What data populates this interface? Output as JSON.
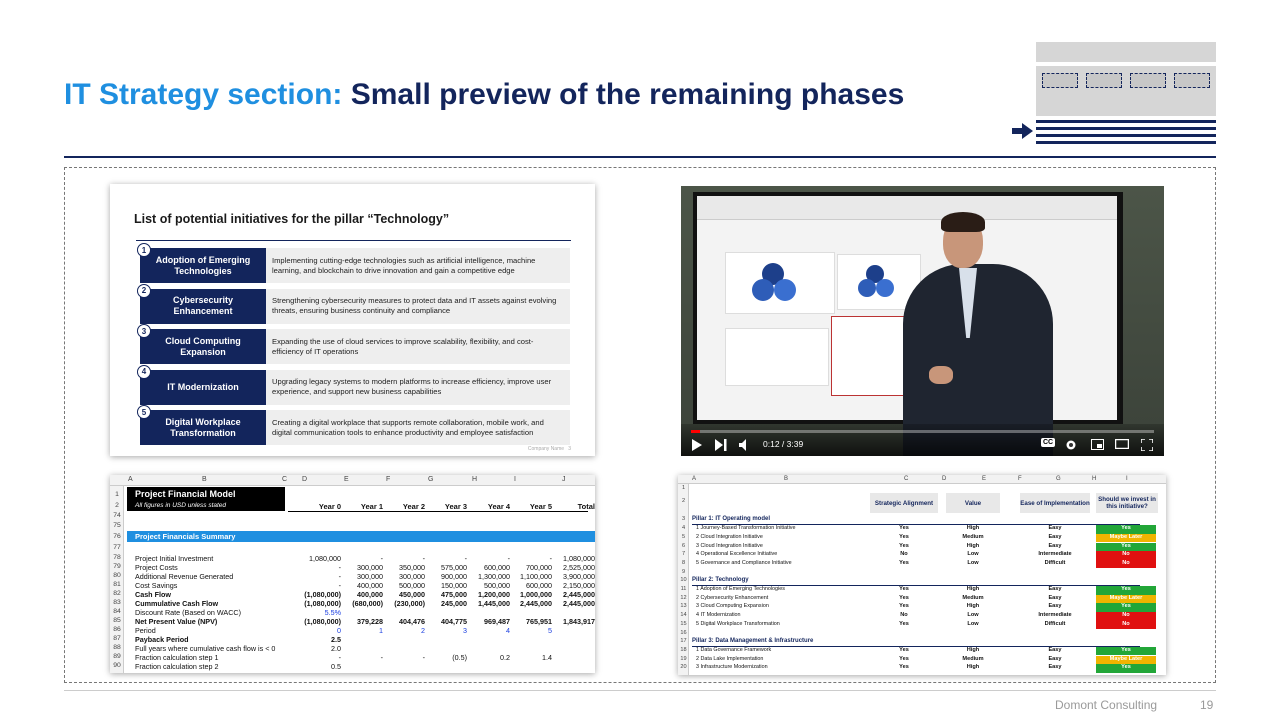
{
  "title": {
    "accent": "IT Strategy section:",
    "rest": "Small preview of the remaining phases"
  },
  "colors": {
    "accent": "#1f8fe0",
    "navy": "#13255c",
    "yes_green": "#22a638",
    "maybe_amber": "#f0b400",
    "no_red": "#e01010"
  },
  "initiatives_slide": {
    "heading": "List of potential initiatives for the pillar “Technology”",
    "footer": "Company Name",
    "footer_page": "3",
    "items": [
      {
        "num": "1",
        "label": "Adoption of Emerging Technologies",
        "desc": "Implementing cutting-edge technologies such as artificial intelligence, machine learning, and blockchain to drive innovation and gain a competitive edge"
      },
      {
        "num": "2",
        "label": "Cybersecurity Enhancement",
        "desc": "Strengthening cybersecurity measures to protect data and IT assets against evolving threats, ensuring business continuity and compliance"
      },
      {
        "num": "3",
        "label": "Cloud Computing Expansion",
        "desc": "Expanding the use of cloud services to improve scalability, flexibility, and cost-efficiency of IT operations"
      },
      {
        "num": "4",
        "label": "IT Modernization",
        "desc": "Upgrading legacy systems to modern platforms to increase efficiency, improve user experience, and support new business capabilities"
      },
      {
        "num": "5",
        "label": "Digital Workplace Transformation",
        "desc": "Creating a digital workplace that supports remote collaboration, mobile work, and digital communication tools to enhance productivity and employee satisfaction"
      }
    ]
  },
  "video": {
    "time": "0:12 / 3:39",
    "progress": 0.02,
    "cc_label": "CC"
  },
  "financial_model": {
    "col_letters": [
      "A",
      "B",
      "C",
      "D",
      "E",
      "F",
      "G",
      "H",
      "I",
      "J"
    ],
    "title": "Project Financial Model",
    "subtitle": "All figures in USD unless stated",
    "headers": [
      "Year 0",
      "Year 1",
      "Year 2",
      "Year 3",
      "Year 4",
      "Year 5",
      "Total"
    ],
    "section_label": "Project Financials Summary",
    "row_numbers": [
      "1",
      "2",
      "74",
      "75",
      "76",
      "77",
      "78",
      "79",
      "80",
      "81",
      "82",
      "83",
      "84",
      "85",
      "86",
      "87",
      "88",
      "89",
      "90"
    ],
    "rows": [
      {
        "label": "Project Initial Investment",
        "bold": false,
        "values": [
          "1,080,000",
          "-",
          "-",
          "-",
          "-",
          "-",
          "1,080,000"
        ]
      },
      {
        "label": "Project Costs",
        "bold": false,
        "values": [
          "-",
          "300,000",
          "350,000",
          "575,000",
          "600,000",
          "700,000",
          "2,525,000"
        ]
      },
      {
        "label": "Additional Revenue Generated",
        "bold": false,
        "values": [
          "-",
          "300,000",
          "300,000",
          "900,000",
          "1,300,000",
          "1,100,000",
          "3,900,000"
        ]
      },
      {
        "label": "Cost Savings",
        "bold": false,
        "values": [
          "-",
          "400,000",
          "500,000",
          "150,000",
          "500,000",
          "600,000",
          "2,150,000"
        ]
      },
      {
        "label": "Cash Flow",
        "bold": true,
        "values": [
          "(1,080,000)",
          "400,000",
          "450,000",
          "475,000",
          "1,200,000",
          "1,000,000",
          "2,445,000"
        ]
      },
      {
        "label": "Cummulative Cash Flow",
        "bold": true,
        "values": [
          "(1,080,000)",
          "(680,000)",
          "(230,000)",
          "245,000",
          "1,445,000",
          "2,445,000",
          "2,445,000"
        ]
      },
      {
        "label": "Discount Rate (Based on WACC)",
        "bold": false,
        "blue": true,
        "values": [
          "5.5%",
          "",
          "",
          "",
          "",
          "",
          ""
        ]
      },
      {
        "label": "Net Present Value (NPV)",
        "bold": true,
        "values": [
          "(1,080,000)",
          "379,228",
          "404,476",
          "404,775",
          "969,487",
          "765,951",
          "1,843,917"
        ]
      },
      {
        "label": "Period",
        "bold": false,
        "blue": true,
        "values": [
          "0",
          "1",
          "2",
          "3",
          "4",
          "5",
          ""
        ]
      },
      {
        "label": "Payback Period",
        "bold": true,
        "values": [
          "2.5",
          "",
          "",
          "",
          "",
          "",
          ""
        ]
      },
      {
        "label": "Full years where cumulative cash flow is < 0",
        "bold": false,
        "values": [
          "2.0",
          "",
          "",
          "",
          "",
          "",
          ""
        ]
      },
      {
        "label": "Fraction calculation step 1",
        "bold": false,
        "values": [
          "-",
          "-",
          "-",
          "(0.5)",
          "0.2",
          "1.4",
          ""
        ]
      },
      {
        "label": "Fraction calculation step 2",
        "bold": false,
        "values": [
          "0.5",
          "",
          "",
          "",
          "",
          "",
          ""
        ]
      }
    ]
  },
  "alignment_sheet": {
    "col_letters": [
      "A",
      "B",
      "C",
      "D",
      "E",
      "F",
      "G",
      "H",
      "I"
    ],
    "headers": [
      "Strategic Alignment",
      "Value",
      "Ease of Implementation",
      "Should we invest in this initiative?"
    ],
    "pillars": [
      {
        "row": "3",
        "name": "Pillar 1: IT Operating model",
        "items": [
          {
            "row": "4",
            "name": "1 Journey-Based Transformation Initiative",
            "align": "Yes",
            "value": "High",
            "ease": "Easy",
            "invest": "Yes"
          },
          {
            "row": "5",
            "name": "2 Cloud Integration Initiative",
            "align": "Yes",
            "value": "Medium",
            "ease": "Easy",
            "invest": "Maybe Later"
          },
          {
            "row": "6",
            "name": "3 Cloud Integration Initiative",
            "align": "Yes",
            "value": "High",
            "ease": "Easy",
            "invest": "Yes"
          },
          {
            "row": "7",
            "name": "4 Operational Excellence Initiative",
            "align": "No",
            "value": "Low",
            "ease": "Intermediate",
            "invest": "No"
          },
          {
            "row": "8",
            "name": "5 Governance and Compliance Initiative",
            "align": "Yes",
            "value": "Low",
            "ease": "Difficult",
            "invest": "No"
          }
        ]
      },
      {
        "row": "10",
        "name": "Pillar 2: Technology",
        "items": [
          {
            "row": "11",
            "name": "1 Adoption of Emerging Technologies",
            "align": "Yes",
            "value": "High",
            "ease": "Easy",
            "invest": "Yes"
          },
          {
            "row": "12",
            "name": "2 Cybersecurity Enhancement",
            "align": "Yes",
            "value": "Medium",
            "ease": "Easy",
            "invest": "Maybe Later"
          },
          {
            "row": "13",
            "name": "3 Cloud Computing Expansion",
            "align": "Yes",
            "value": "High",
            "ease": "Easy",
            "invest": "Yes"
          },
          {
            "row": "14",
            "name": "4 IT Modernization",
            "align": "No",
            "value": "Low",
            "ease": "Intermediate",
            "invest": "No"
          },
          {
            "row": "15",
            "name": "5 Digital Workplace Transformation",
            "align": "Yes",
            "value": "Low",
            "ease": "Difficult",
            "invest": "No"
          }
        ]
      },
      {
        "row": "17",
        "name": "Pillar 3: Data Management & Infrastructure",
        "items": [
          {
            "row": "18",
            "name": "1 Data Governance Framework",
            "align": "Yes",
            "value": "High",
            "ease": "Easy",
            "invest": "Yes"
          },
          {
            "row": "19",
            "name": "2 Data Lake Implementation",
            "align": "Yes",
            "value": "Medium",
            "ease": "Easy",
            "invest": "Maybe Later"
          },
          {
            "row": "20",
            "name": "3 Infrastructure Modernization",
            "align": "Yes",
            "value": "High",
            "ease": "Easy",
            "invest": "Yes"
          }
        ]
      }
    ],
    "extra_rows": [
      "1",
      "2",
      "9",
      "16"
    ]
  },
  "footer": {
    "company": "Domont Consulting",
    "page": "19"
  }
}
